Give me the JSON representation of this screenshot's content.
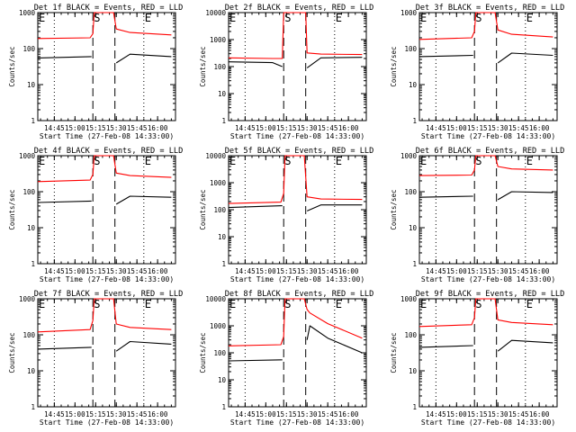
{
  "page_title": "",
  "chart_data": [
    {
      "type": "line",
      "title": "Det 1f BLACK = Events, RED = LLD",
      "xlabel": "Start Time (27-Feb-08 14:33:00)",
      "ylabel": "Counts/sec",
      "yscale": "log",
      "ylim": [
        1,
        1000
      ],
      "ytick_labels": [
        "1",
        "10",
        "100",
        "1000"
      ],
      "x_ticks": [
        "14:45",
        "15:00",
        "15:15",
        "15:30",
        "15:45",
        "16:00"
      ],
      "markers": [
        {
          "label": "E",
          "x": "14:33",
          "style": "solid"
        },
        {
          "label": "S",
          "x": "15:13",
          "style": "dashed"
        },
        {
          "label": "",
          "x": "15:29",
          "style": "dashed"
        },
        {
          "label": "E",
          "x": "15:50",
          "style": "dotted"
        }
      ],
      "series": [
        {
          "name": "BLACK = Events",
          "color": "#000000",
          "x": [
            "14:33",
            "15:12",
            "15:29",
            "15:30",
            "15:40",
            "16:10"
          ],
          "y": [
            55,
            60,
            null,
            40,
            70,
            60
          ]
        },
        {
          "name": "RED = LLD",
          "color": "#ff0000",
          "x": [
            "14:33",
            "15:11",
            "15:13",
            "15:14",
            "15:28",
            "15:30",
            "15:40",
            "16:10"
          ],
          "y": [
            190,
            200,
            260,
            1000,
            1000,
            350,
            280,
            240
          ]
        }
      ]
    },
    {
      "type": "line",
      "title": "Det 2f BLACK = Events, RED = LLD",
      "xlabel": "Start Time (27-Feb-08 14:33:00)",
      "ylabel": "Counts/sec",
      "yscale": "log",
      "ylim": [
        1,
        10000
      ],
      "ytick_labels": [
        "1",
        "10",
        "100",
        "1000",
        "10000"
      ],
      "x_ticks": [
        "14:45",
        "15:00",
        "15:15",
        "15:30",
        "15:45",
        "16:00"
      ],
      "markers": [
        {
          "label": "E",
          "x": "14:33",
          "style": "solid"
        },
        {
          "label": "S",
          "x": "15:13",
          "style": "dashed"
        },
        {
          "label": "",
          "x": "15:29",
          "style": "dashed"
        },
        {
          "label": "E",
          "x": "15:50",
          "style": "dotted"
        }
      ],
      "series": [
        {
          "name": "BLACK = Events",
          "color": "#000000",
          "x": [
            "14:33",
            "15:05",
            "15:12",
            "15:29",
            "15:30",
            "15:40",
            "16:10"
          ],
          "y": [
            150,
            140,
            100,
            null,
            90,
            210,
            220
          ]
        },
        {
          "name": "RED = LLD",
          "color": "#ff0000",
          "x": [
            "14:33",
            "15:05",
            "15:12",
            "15:13",
            "15:29",
            "15:30",
            "15:40",
            "16:10"
          ],
          "y": [
            210,
            200,
            200,
            10000,
            10000,
            320,
            290,
            280
          ]
        }
      ]
    },
    {
      "type": "line",
      "title": "Det 3f BLACK = Events, RED = LLD",
      "xlabel": "Start Time (27-Feb-08 14:33:00)",
      "ylabel": "Counts/sec",
      "yscale": "log",
      "ylim": [
        1,
        1000
      ],
      "ytick_labels": [
        "1",
        "10",
        "100",
        "1000"
      ],
      "x_ticks": [
        "14:45",
        "15:00",
        "15:15",
        "15:30",
        "15:45",
        "16:00"
      ],
      "markers": [
        {
          "label": "E",
          "x": "14:33",
          "style": "solid"
        },
        {
          "label": "S",
          "x": "15:13",
          "style": "dashed"
        },
        {
          "label": "",
          "x": "15:29",
          "style": "dashed"
        },
        {
          "label": "E",
          "x": "15:50",
          "style": "dotted"
        }
      ],
      "series": [
        {
          "name": "BLACK = Events",
          "color": "#000000",
          "x": [
            "14:33",
            "15:12",
            "15:29",
            "15:30",
            "15:40",
            "16:10"
          ],
          "y": [
            60,
            65,
            null,
            40,
            75,
            65
          ]
        },
        {
          "name": "RED = LLD",
          "color": "#ff0000",
          "x": [
            "14:33",
            "15:11",
            "15:13",
            "15:14",
            "15:28",
            "15:30",
            "15:40",
            "16:10"
          ],
          "y": [
            180,
            200,
            300,
            1000,
            1000,
            330,
            250,
            210
          ]
        }
      ]
    },
    {
      "type": "line",
      "title": "Det 4f BLACK = Events, RED = LLD",
      "xlabel": "Start Time (27-Feb-08 14:33:00)",
      "ylabel": "Counts/sec",
      "yscale": "log",
      "ylim": [
        1,
        1000
      ],
      "ytick_labels": [
        "1",
        "10",
        "100",
        "1000"
      ],
      "x_ticks": [
        "14:45",
        "15:00",
        "15:15",
        "15:30",
        "15:45",
        "16:00"
      ],
      "markers": [
        {
          "label": "E",
          "x": "14:33",
          "style": "solid"
        },
        {
          "label": "S",
          "x": "15:13",
          "style": "dashed"
        },
        {
          "label": "",
          "x": "15:29",
          "style": "dashed"
        },
        {
          "label": "E",
          "x": "15:50",
          "style": "dotted"
        }
      ],
      "series": [
        {
          "name": "BLACK = Events",
          "color": "#000000",
          "x": [
            "14:33",
            "15:12",
            "15:29",
            "15:30",
            "15:40",
            "16:10"
          ],
          "y": [
            50,
            55,
            null,
            45,
            75,
            70
          ]
        },
        {
          "name": "RED = LLD",
          "color": "#ff0000",
          "x": [
            "14:33",
            "15:11",
            "15:13",
            "15:14",
            "15:28",
            "15:30",
            "15:40",
            "16:10"
          ],
          "y": [
            190,
            210,
            300,
            1000,
            1000,
            330,
            280,
            250
          ]
        }
      ]
    },
    {
      "type": "line",
      "title": "Det 5f BLACK = Events, RED = LLD",
      "xlabel": "Start Time (27-Feb-08 14:33:00)",
      "ylabel": "Counts/sec",
      "yscale": "log",
      "ylim": [
        1,
        10000
      ],
      "ytick_labels": [
        "1",
        "10",
        "100",
        "1000",
        "10000"
      ],
      "x_ticks": [
        "14:45",
        "15:00",
        "15:15",
        "15:30",
        "15:45",
        "16:00"
      ],
      "markers": [
        {
          "label": "E",
          "x": "14:33",
          "style": "solid"
        },
        {
          "label": "S",
          "x": "15:13",
          "style": "dashed"
        },
        {
          "label": "",
          "x": "15:29",
          "style": "dashed"
        },
        {
          "label": "E",
          "x": "15:50",
          "style": "dotted"
        }
      ],
      "series": [
        {
          "name": "BLACK = Events",
          "color": "#000000",
          "x": [
            "14:33",
            "15:12",
            "15:29",
            "15:30",
            "15:40",
            "16:10"
          ],
          "y": [
            120,
            140,
            null,
            90,
            150,
            150
          ]
        },
        {
          "name": "RED = LLD",
          "color": "#ff0000",
          "x": [
            "14:33",
            "15:11",
            "15:13",
            "15:14",
            "15:28",
            "15:30",
            "15:40",
            "16:10"
          ],
          "y": [
            170,
            190,
            400,
            10000,
            10000,
            300,
            250,
            240
          ]
        }
      ]
    },
    {
      "type": "line",
      "title": "Det 6f BLACK = Events, RED = LLD",
      "xlabel": "Start Time (27-Feb-08 14:33:00)",
      "ylabel": "Counts/sec",
      "yscale": "log",
      "ylim": [
        1,
        1000
      ],
      "ytick_labels": [
        "1",
        "10",
        "100",
        "1000"
      ],
      "x_ticks": [
        "14:45",
        "15:00",
        "15:15",
        "15:30",
        "15:45",
        "16:00"
      ],
      "markers": [
        {
          "label": "E",
          "x": "14:33",
          "style": "solid"
        },
        {
          "label": "S",
          "x": "15:13",
          "style": "dashed"
        },
        {
          "label": "",
          "x": "15:29",
          "style": "dashed"
        },
        {
          "label": "E",
          "x": "15:50",
          "style": "dotted"
        }
      ],
      "series": [
        {
          "name": "BLACK = Events",
          "color": "#000000",
          "x": [
            "14:33",
            "15:12",
            "15:29",
            "15:30",
            "15:40",
            "16:10"
          ],
          "y": [
            70,
            75,
            null,
            60,
            100,
            95
          ]
        },
        {
          "name": "RED = LLD",
          "color": "#ff0000",
          "x": [
            "14:33",
            "15:11",
            "15:13",
            "15:14",
            "15:28",
            "15:30",
            "15:40",
            "16:10"
          ],
          "y": [
            280,
            290,
            400,
            1000,
            1000,
            500,
            430,
            400
          ]
        }
      ]
    },
    {
      "type": "line",
      "title": "Det 7f BLACK = Events, RED = LLD",
      "xlabel": "Start Time (27-Feb-08 14:33:00)",
      "ylabel": "Counts/sec",
      "yscale": "log",
      "ylim": [
        1,
        1000
      ],
      "ytick_labels": [
        "1",
        "10",
        "100",
        "1000"
      ],
      "x_ticks": [
        "14:45",
        "15:00",
        "15:15",
        "15:30",
        "15:45",
        "16:00"
      ],
      "markers": [
        {
          "label": "E",
          "x": "14:33",
          "style": "solid"
        },
        {
          "label": "S",
          "x": "15:13",
          "style": "dashed"
        },
        {
          "label": "",
          "x": "15:29",
          "style": "dashed"
        },
        {
          "label": "E",
          "x": "15:50",
          "style": "dotted"
        }
      ],
      "series": [
        {
          "name": "BLACK = Events",
          "color": "#000000",
          "x": [
            "14:33",
            "15:12",
            "15:29",
            "15:30",
            "15:40",
            "16:10"
          ],
          "y": [
            40,
            45,
            null,
            35,
            65,
            55
          ]
        },
        {
          "name": "RED = LLD",
          "color": "#ff0000",
          "x": [
            "14:33",
            "15:11",
            "15:13",
            "15:14",
            "15:28",
            "15:30",
            "15:40",
            "16:10"
          ],
          "y": [
            120,
            140,
            250,
            1000,
            1000,
            200,
            160,
            140
          ]
        }
      ]
    },
    {
      "type": "line",
      "title": "Det 8f BLACK = Events, RED = LLD",
      "xlabel": "Start Time (27-Feb-08 14:33:00)",
      "ylabel": "Counts/sec",
      "yscale": "log",
      "ylim": [
        1,
        10000
      ],
      "ytick_labels": [
        "1",
        "10",
        "100",
        "1000",
        "10000"
      ],
      "x_ticks": [
        "14:45",
        "15:00",
        "15:15",
        "15:30",
        "15:45",
        "16:00"
      ],
      "markers": [
        {
          "label": "E",
          "x": "14:33",
          "style": "solid"
        },
        {
          "label": "S",
          "x": "15:13",
          "style": "dashed"
        },
        {
          "label": "",
          "x": "15:29",
          "style": "dashed"
        },
        {
          "label": "E",
          "x": "15:50",
          "style": "dotted"
        }
      ],
      "series": [
        {
          "name": "BLACK = Events",
          "color": "#000000",
          "x": [
            "14:33",
            "15:12",
            "15:29",
            "15:30",
            "15:32",
            "15:45",
            "16:10"
          ],
          "y": [
            50,
            55,
            null,
            300,
            1000,
            350,
            100
          ]
        },
        {
          "name": "RED = LLD",
          "color": "#ff0000",
          "x": [
            "14:33",
            "15:11",
            "15:13",
            "15:14",
            "15:28",
            "15:30",
            "15:32",
            "15:45",
            "16:10"
          ],
          "y": [
            180,
            200,
            400,
            10000,
            10000,
            4000,
            3000,
            1200,
            350
          ]
        }
      ]
    },
    {
      "type": "line",
      "title": "Det 9f BLACK = Events, RED = LLD",
      "xlabel": "Start Time (27-Feb-08 14:33:00)",
      "ylabel": "Counts/sec",
      "yscale": "log",
      "ylim": [
        1,
        1000
      ],
      "ytick_labels": [
        "1",
        "10",
        "100",
        "1000"
      ],
      "x_ticks": [
        "14:45",
        "15:00",
        "15:15",
        "15:30",
        "15:45",
        "16:00"
      ],
      "markers": [
        {
          "label": "E",
          "x": "14:33",
          "style": "solid"
        },
        {
          "label": "S",
          "x": "15:13",
          "style": "dashed"
        },
        {
          "label": "",
          "x": "15:29",
          "style": "dashed"
        },
        {
          "label": "E",
          "x": "15:50",
          "style": "dotted"
        }
      ],
      "series": [
        {
          "name": "BLACK = Events",
          "color": "#000000",
          "x": [
            "14:33",
            "15:12",
            "15:29",
            "15:30",
            "15:40",
            "16:10"
          ],
          "y": [
            45,
            50,
            null,
            35,
            70,
            60
          ]
        },
        {
          "name": "RED = LLD",
          "color": "#ff0000",
          "x": [
            "14:33",
            "15:11",
            "15:13",
            "15:14",
            "15:28",
            "15:30",
            "15:40",
            "16:10"
          ],
          "y": [
            170,
            190,
            300,
            1000,
            1000,
            260,
            220,
            190
          ]
        }
      ]
    }
  ]
}
